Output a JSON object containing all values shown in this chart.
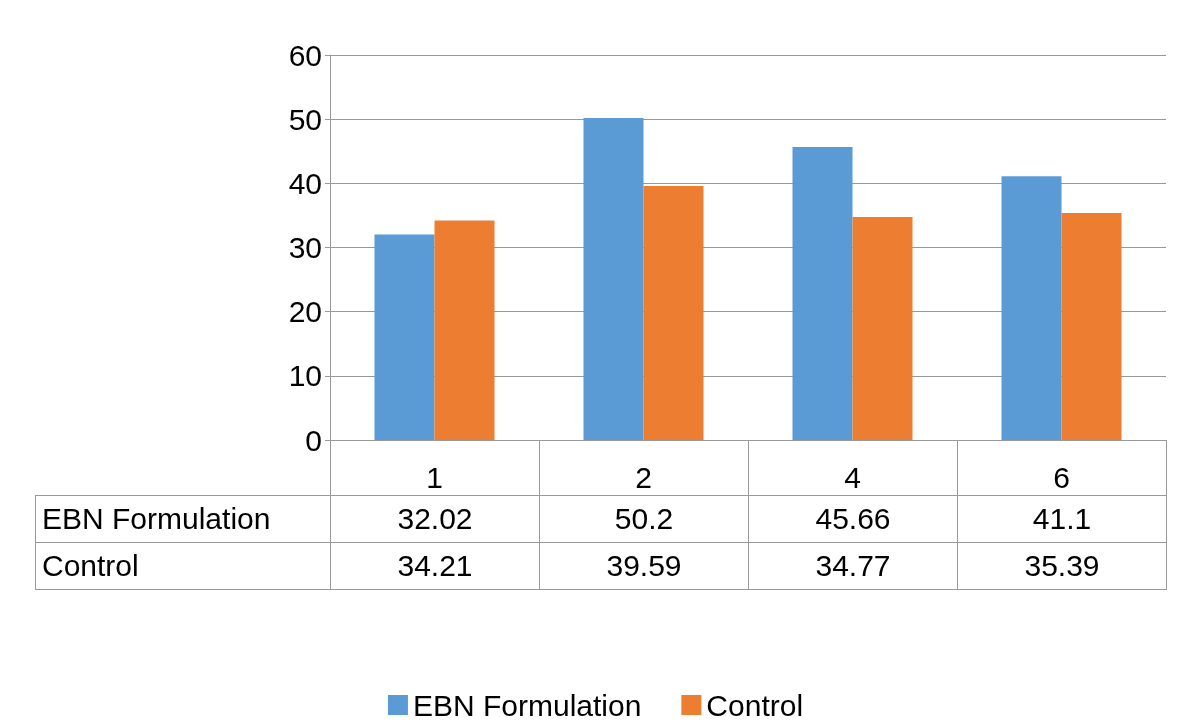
{
  "chart_data": {
    "type": "bar",
    "categories": [
      "1",
      "2",
      "4",
      "6"
    ],
    "series": [
      {
        "name": "EBN Formulation",
        "color": "#5b9bd5",
        "values": [
          32.02,
          50.2,
          45.66,
          41.1
        ]
      },
      {
        "name": "Control",
        "color": "#ed7d31",
        "values": [
          34.21,
          39.59,
          34.77,
          35.39
        ]
      }
    ],
    "ylim": [
      0,
      60
    ],
    "yticks": [
      0,
      10,
      20,
      30,
      40,
      50,
      60
    ],
    "grid": "y",
    "legend": "bottom",
    "data_labels": true
  }
}
